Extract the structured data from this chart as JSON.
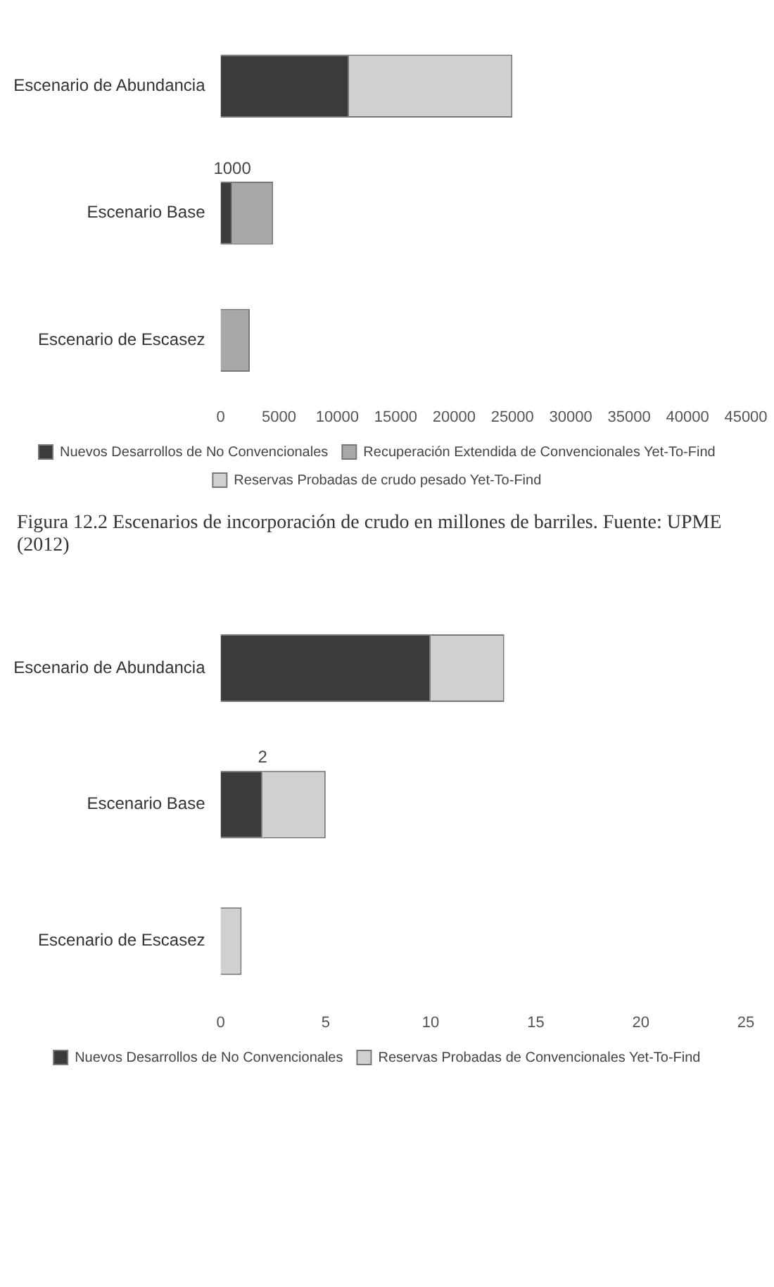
{
  "chart_data": [
    {
      "type": "bar",
      "orientation": "horizontal",
      "stacked": true,
      "categories": [
        "Escenario de Abundancia",
        "Escenario Base",
        "Escenario de Escasez"
      ],
      "series": [
        {
          "name": "Nuevos Desarrollos de No Convencionales",
          "color": "#3b3b3b",
          "values": [
            11000,
            1000,
            0
          ],
          "value_labels": [
            null,
            "1000",
            null
          ]
        },
        {
          "name": "Recuperación Extendida de Convencionales Yet-To-Find",
          "color": "#a8a8a8",
          "values": [
            0,
            3500,
            2500
          ]
        },
        {
          "name": "Reservas Probadas de crudo pesado Yet-To-Find",
          "color": "#d0d0d0",
          "values": [
            14000,
            0,
            0
          ]
        }
      ],
      "xlim": [
        0,
        45000
      ],
      "xticks": [
        0,
        5000,
        10000,
        15000,
        20000,
        25000,
        30000,
        35000,
        40000,
        45000
      ],
      "grid": false,
      "legend": "bottom",
      "annotations": [
        "Figura 12.2 Escenarios de incorporación de crudo en millones de barriles. Fuente: UPME (2012)"
      ]
    },
    {
      "type": "bar",
      "orientation": "horizontal",
      "stacked": true,
      "categories": [
        "Escenario de Abundancia",
        "Escenario Base",
        "Escenario de Escasez"
      ],
      "series": [
        {
          "name": "Nuevos Desarrollos de No Convencionales",
          "color": "#3b3b3b",
          "values": [
            10,
            2,
            0
          ],
          "value_labels": [
            null,
            "2",
            null
          ]
        },
        {
          "name": "Reservas Probadas de Convencionales Yet-To-Find",
          "color": "#d0d0d0",
          "values": [
            3.5,
            3,
            1
          ]
        }
      ],
      "xlim": [
        0,
        25
      ],
      "xticks": [
        0,
        5,
        10,
        15,
        20,
        25
      ],
      "grid": false,
      "legend": "bottom"
    }
  ]
}
